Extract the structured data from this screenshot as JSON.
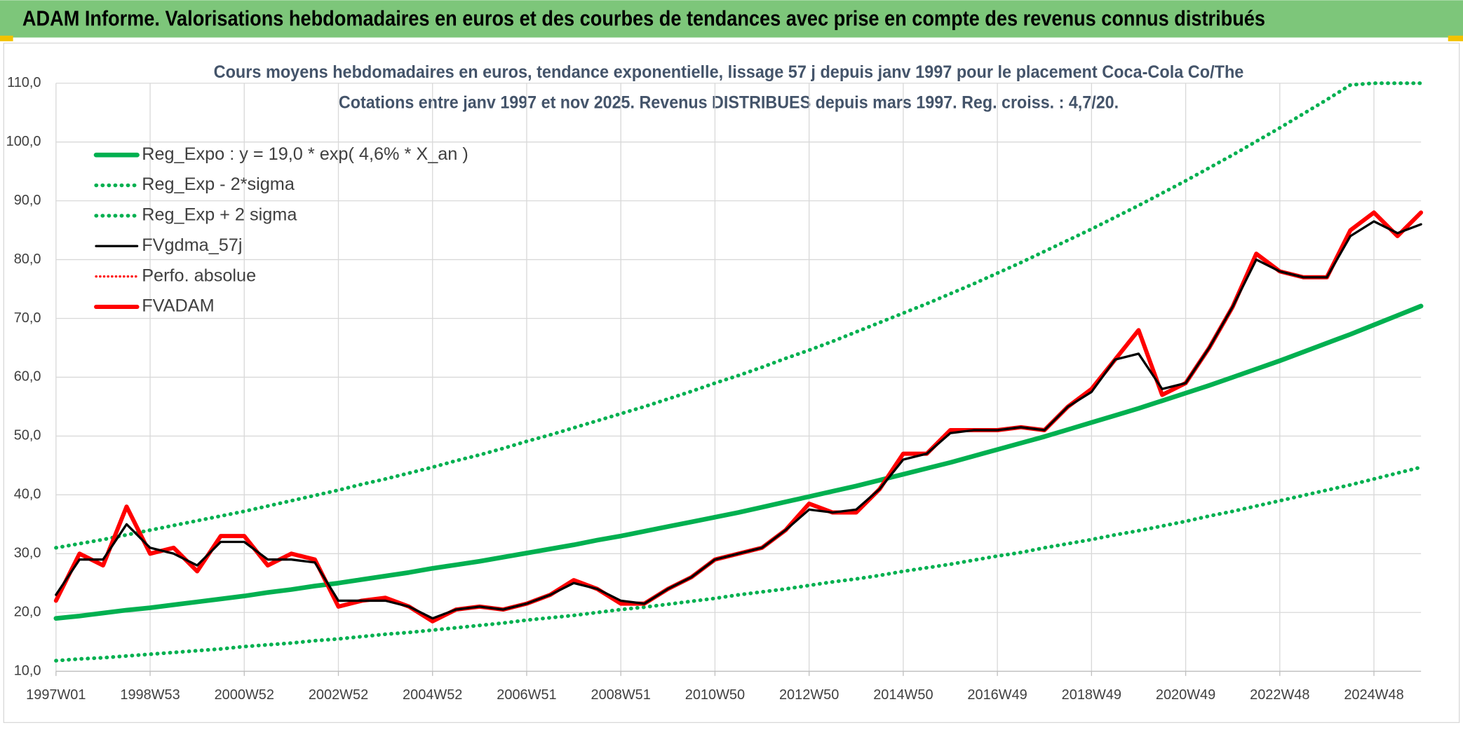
{
  "header": {
    "title": "ADAM Informe. Valorisations hebdomadaires en euros et des courbes de tendances avec prise en compte des revenus connus distribués"
  },
  "chart_data": {
    "type": "line",
    "title": "Cours moyens hebdomadaires en euros, tendance exponentielle, lissage 57 j depuis janv 1997 pour le placement Coca-Cola Co/The",
    "subtitle": "Cotations entre janv 1997 et nov 2025. Revenus DISTRIBUES depuis mars 1997. Reg. croiss. : 4,7/20.",
    "categories": [
      "1997W01",
      null,
      null,
      null,
      "1998W53",
      null,
      null,
      null,
      "2000W52",
      null,
      null,
      null,
      "2002W52",
      null,
      null,
      null,
      "2004W52",
      null,
      null,
      null,
      "2006W51",
      null,
      null,
      null,
      "2008W51",
      null,
      null,
      null,
      "2010W50",
      null,
      null,
      null,
      "2012W50",
      null,
      null,
      null,
      "2014W50",
      null,
      null,
      null,
      "2016W49",
      null,
      null,
      null,
      "2018W49",
      null,
      null,
      null,
      "2020W49",
      null,
      null,
      null,
      "2022W48",
      null,
      null,
      null,
      "2024W48",
      null,
      null
    ],
    "ylim": [
      10,
      110
    ],
    "yticks": [
      {
        "value": 10,
        "label": "10,0"
      },
      {
        "value": 20,
        "label": "20,0"
      },
      {
        "value": 30,
        "label": "30,0"
      },
      {
        "value": 40,
        "label": "40,0"
      },
      {
        "value": 50,
        "label": "50,0"
      },
      {
        "value": 60,
        "label": "60,0"
      },
      {
        "value": 70,
        "label": "70,0"
      },
      {
        "value": 80,
        "label": "80,0"
      },
      {
        "value": 90,
        "label": "90,0"
      },
      {
        "value": 100,
        "label": "100,0"
      },
      {
        "value": 110,
        "label": "110,0"
      }
    ],
    "grid": true,
    "legend": "upper left",
    "series": [
      {
        "name": "Reg_Expo : y = 19,0 * exp( 4,6% *  X_an )",
        "color": "#00b050",
        "style": "solid",
        "width": 5,
        "values": [
          19.0,
          19.4,
          19.9,
          20.4,
          20.8,
          21.3,
          21.8,
          22.3,
          22.8,
          23.4,
          23.9,
          24.5,
          25.0,
          25.6,
          26.2,
          26.8,
          27.5,
          28.1,
          28.7,
          29.4,
          30.1,
          30.8,
          31.5,
          32.3,
          33.0,
          33.8,
          34.6,
          35.4,
          36.2,
          37.0,
          37.9,
          38.8,
          39.7,
          40.6,
          41.5,
          42.5,
          43.5,
          44.5,
          45.5,
          46.6,
          47.7,
          48.8,
          49.9,
          51.1,
          52.3,
          53.5,
          54.7,
          56.0,
          57.3,
          58.6,
          60.0,
          61.4,
          62.8,
          64.3,
          65.8,
          67.3,
          68.9,
          70.5,
          72.1
        ]
      },
      {
        "name": "Reg_Exp - 2*sigma",
        "color": "#00b050",
        "style": "dotted",
        "width": 4,
        "values": [
          11.8,
          12.1,
          12.3,
          12.6,
          12.9,
          13.2,
          13.5,
          13.8,
          14.2,
          14.5,
          14.8,
          15.2,
          15.5,
          15.9,
          16.3,
          16.6,
          17.0,
          17.4,
          17.8,
          18.2,
          18.7,
          19.1,
          19.5,
          20.0,
          20.5,
          20.9,
          21.4,
          21.9,
          22.4,
          23.0,
          23.5,
          24.0,
          24.6,
          25.2,
          25.7,
          26.3,
          27.0,
          27.6,
          28.2,
          28.9,
          29.6,
          30.2,
          31.0,
          31.7,
          32.4,
          33.2,
          33.9,
          34.7,
          35.5,
          36.4,
          37.2,
          38.1,
          39.0,
          39.9,
          40.8,
          41.7,
          42.7,
          43.7,
          44.7
        ]
      },
      {
        "name": "Reg_Exp + 2 sigma",
        "color": "#00b050",
        "style": "dotted",
        "width": 4,
        "values": [
          31.0,
          31.7,
          32.4,
          33.2,
          34.0,
          34.8,
          35.6,
          36.4,
          37.2,
          38.1,
          39.0,
          39.9,
          40.8,
          41.8,
          42.7,
          43.7,
          44.7,
          45.8,
          46.8,
          47.9,
          49.1,
          50.2,
          51.4,
          52.6,
          53.8,
          55.0,
          56.3,
          57.6,
          59.0,
          60.3,
          61.7,
          63.2,
          64.6,
          66.1,
          67.7,
          69.3,
          70.9,
          72.5,
          74.2,
          75.9,
          77.7,
          79.5,
          81.4,
          83.3,
          85.2,
          87.2,
          89.2,
          91.3,
          93.4,
          95.6,
          97.8,
          100.1,
          102.4,
          104.8,
          107.2,
          109.7,
          110,
          110,
          110
        ]
      },
      {
        "name": "FVgdma_57j",
        "color": "#000000",
        "style": "solid",
        "width": 2.5,
        "top": true,
        "values": [
          23,
          29,
          29,
          35,
          31,
          30,
          28,
          32,
          32,
          29,
          29,
          28.5,
          22,
          22,
          22,
          21,
          19,
          20.5,
          21,
          20.5,
          21.5,
          23,
          25,
          24,
          22,
          21.5,
          24,
          26,
          29,
          30,
          31,
          34,
          37.5,
          37,
          37.5,
          41,
          46,
          47,
          50.5,
          51,
          51,
          51.5,
          51,
          55,
          57.5,
          63,
          64,
          58,
          59,
          65,
          72,
          80,
          78,
          77,
          77,
          84,
          86.5,
          84.5,
          86
        ]
      },
      {
        "name": "Perfo. absolue",
        "color": "#ff0000",
        "style": "dotted",
        "width": 2.5,
        "values": [
          22,
          30,
          28,
          38,
          30,
          31,
          27,
          33,
          33,
          28,
          30,
          29,
          21,
          22,
          22.5,
          21,
          18.5,
          20.5,
          21,
          20.5,
          21.5,
          23,
          25.5,
          24,
          21.5,
          21.5,
          24,
          26,
          29,
          30,
          31,
          34,
          38.5,
          37,
          37,
          41,
          47,
          47,
          51,
          51,
          51,
          51.5,
          51,
          55,
          58,
          63,
          68,
          57,
          59,
          65,
          72,
          81,
          78,
          77,
          77,
          85,
          88,
          84,
          88
        ]
      },
      {
        "name": "FVADAM",
        "color": "#ff0000",
        "style": "solid",
        "width": 4.5,
        "values": [
          22,
          30,
          28,
          38,
          30,
          31,
          27,
          33,
          33,
          28,
          30,
          29,
          21,
          22,
          22.5,
          21,
          18.5,
          20.5,
          21,
          20.5,
          21.5,
          23,
          25.5,
          24,
          21.5,
          21.5,
          24,
          26,
          29,
          30,
          31,
          34,
          38.5,
          37,
          37,
          41,
          47,
          47,
          51,
          51,
          51,
          51.5,
          51,
          55,
          58,
          63,
          68,
          57,
          59,
          65,
          72,
          81,
          78,
          77,
          77,
          85,
          88,
          84,
          88
        ]
      }
    ]
  }
}
